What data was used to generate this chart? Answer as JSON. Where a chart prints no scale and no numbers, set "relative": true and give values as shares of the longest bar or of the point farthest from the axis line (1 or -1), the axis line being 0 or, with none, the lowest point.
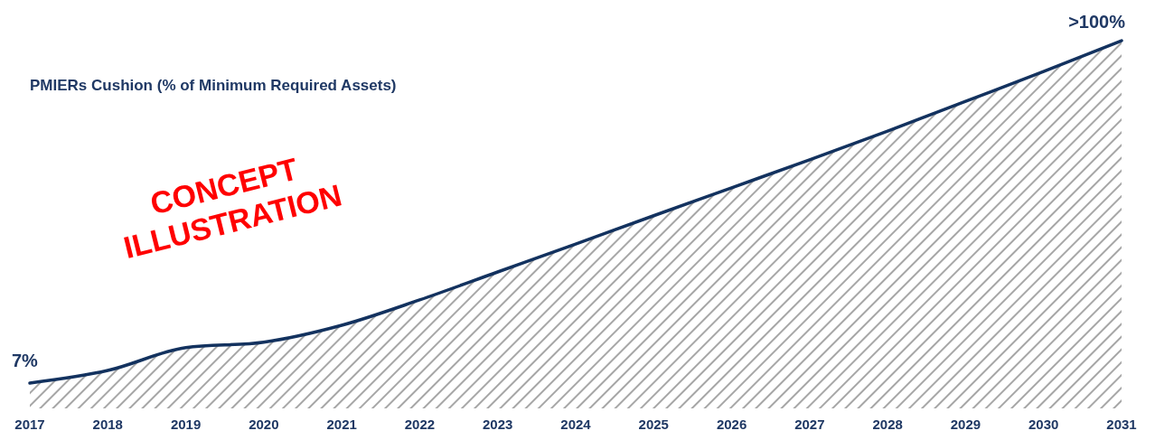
{
  "chart_data": {
    "type": "area",
    "title": "PMIERs Cushion (% of Minimum Required Assets)",
    "relative": true,
    "categories": [
      "2017",
      "2018",
      "2019",
      "2020",
      "2021",
      "2022",
      "2023",
      "2024",
      "2025",
      "2026",
      "2027",
      "2028",
      "2029",
      "2030",
      "2031"
    ],
    "series": [
      {
        "color": "#13325f",
        "values": [
          0.069,
          0.103,
          0.165,
          0.18,
          0.226,
          0.295,
          0.371,
          0.447,
          0.524,
          0.6,
          0.676,
          0.754,
          0.835,
          0.916,
          1
        ]
      }
    ],
    "annotations": [
      {
        "text": "7%",
        "x": "2017",
        "y": 0.069
      },
      {
        "text": ">100%",
        "x": "2031",
        "y": 1
      },
      "CONCEPT ILLUSTRATION"
    ]
  }
}
